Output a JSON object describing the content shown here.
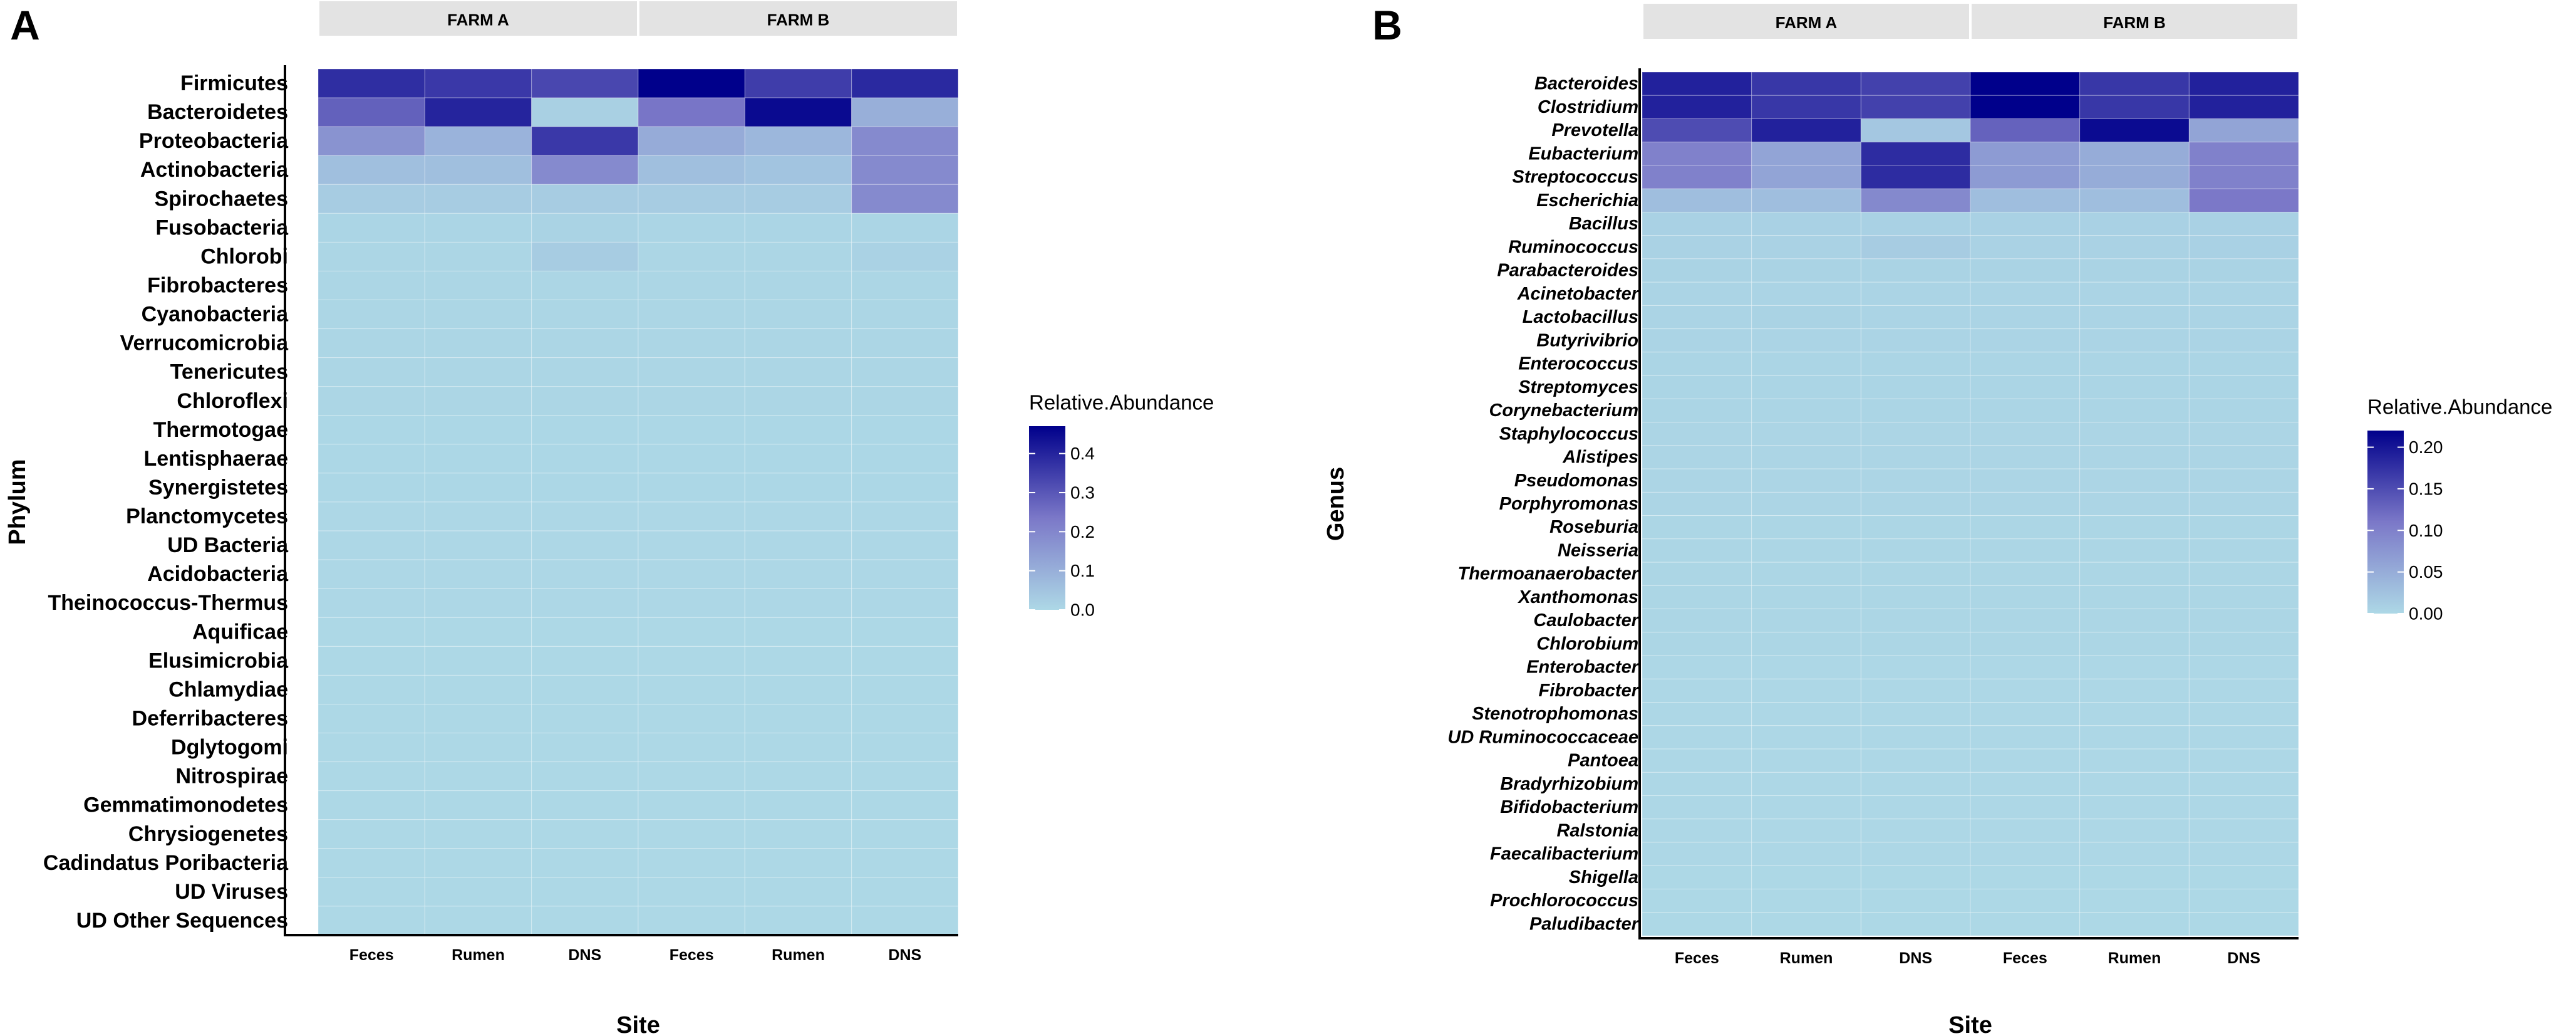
{
  "chart_data": [
    {
      "panel_label": "A",
      "type": "heatmap",
      "facets": [
        "FARM A",
        "FARM B"
      ],
      "x": [
        "Feces",
        "Rumen",
        "DNS",
        "Feces",
        "Rumen",
        "DNS"
      ],
      "xlabel": "Site",
      "ylabel": "Phylum",
      "y": [
        "Firmicutes",
        "Bacteroidetes",
        "Proteobacteria",
        "Actinobacteria",
        "Spirochaetes",
        "Fusobacteria",
        "Chlorobi",
        "Fibrobacteres",
        "Cyanobacteria",
        "Verrucomicrobia",
        "Tenericutes",
        "Chloroflexi",
        "Thermotogae",
        "Lentisphaerae",
        "Synergistetes",
        "Planctomycetes",
        "UD Bacteria",
        "Acidobacteria",
        "Theinococcus-Thermus",
        "Aquificae",
        "Elusimicrobia",
        "Chlamydiae",
        "Deferribacteres",
        "Dglytogomi",
        "Nitrospirae",
        "Gemmatimonodetes",
        "Chrysiogenetes",
        "Cadindatus Poribacteria",
        "UD Viruses",
        "UD Other Sequences"
      ],
      "values": [
        [
          0.38,
          0.36,
          0.33,
          0.47,
          0.35,
          0.39
        ],
        [
          0.28,
          0.4,
          0.02,
          0.24,
          0.45,
          0.1
        ],
        [
          0.17,
          0.09,
          0.36,
          0.11,
          0.08,
          0.19
        ],
        [
          0.06,
          0.06,
          0.19,
          0.06,
          0.05,
          0.19
        ],
        [
          0.03,
          0.03,
          0.03,
          0.03,
          0.03,
          0.19
        ],
        [
          0.008,
          0.008,
          0.012,
          0.008,
          0.008,
          0.008
        ],
        [
          0.006,
          0.006,
          0.03,
          0.006,
          0.006,
          0.014
        ],
        [
          0.005,
          0.005,
          0.006,
          0.005,
          0.005,
          0.005
        ],
        [
          0.005,
          0.005,
          0.005,
          0.005,
          0.005,
          0.005
        ],
        [
          0.004,
          0.004,
          0.004,
          0.004,
          0.004,
          0.004
        ],
        [
          0.004,
          0.004,
          0.004,
          0.004,
          0.004,
          0.004
        ],
        [
          0.004,
          0.004,
          0.004,
          0.004,
          0.004,
          0.004
        ],
        [
          0.003,
          0.003,
          0.003,
          0.003,
          0.003,
          0.003
        ],
        [
          0.003,
          0.003,
          0.003,
          0.003,
          0.003,
          0.003
        ],
        [
          0.003,
          0.003,
          0.003,
          0.003,
          0.003,
          0.003
        ],
        [
          0.002,
          0.002,
          0.002,
          0.002,
          0.002,
          0.002
        ],
        [
          0.002,
          0.002,
          0.002,
          0.002,
          0.002,
          0.002
        ],
        [
          0.002,
          0.002,
          0.002,
          0.002,
          0.002,
          0.002
        ],
        [
          0.002,
          0.002,
          0.002,
          0.002,
          0.002,
          0.002
        ],
        [
          0.001,
          0.001,
          0.001,
          0.001,
          0.001,
          0.001
        ],
        [
          0.001,
          0.001,
          0.001,
          0.001,
          0.001,
          0.001
        ],
        [
          0.001,
          0.001,
          0.001,
          0.001,
          0.001,
          0.001
        ],
        [
          0.001,
          0.001,
          0.001,
          0.001,
          0.001,
          0.001
        ],
        [
          0.001,
          0.001,
          0.001,
          0.001,
          0.001,
          0.001
        ],
        [
          0.001,
          0.001,
          0.001,
          0.001,
          0.001,
          0.001
        ],
        [
          0.0005,
          0.0005,
          0.0005,
          0.0005,
          0.0005,
          0.0005
        ],
        [
          0.0005,
          0.0005,
          0.0005,
          0.0005,
          0.0005,
          0.0005
        ],
        [
          0.0005,
          0.0005,
          0.0005,
          0.0005,
          0.0005,
          0.0005
        ],
        [
          0.0005,
          0.0005,
          0.0005,
          0.0005,
          0.0005,
          0.0005
        ],
        [
          0.0005,
          0.0005,
          0.0005,
          0.0005,
          0.0005,
          0.0005
        ]
      ],
      "legend": {
        "title": "Relative.Abundance",
        "min": 0.0,
        "max": 0.47,
        "ticks": [
          0.0,
          0.1,
          0.2,
          0.3,
          0.4
        ],
        "tick_labels": [
          "0.0",
          "0.1",
          "0.2",
          "0.3",
          "0.4"
        ],
        "low_color": "#add8e6",
        "mid_color": "#7b78c8",
        "high_color": "#00008b",
        "position": "right"
      }
    },
    {
      "panel_label": "B",
      "type": "heatmap",
      "facets": [
        "FARM A",
        "FARM B"
      ],
      "x": [
        "Feces",
        "Rumen",
        "DNS",
        "Feces",
        "Rumen",
        "DNS"
      ],
      "xlabel": "Site",
      "ylabel": "Genus",
      "y": [
        "Bacteroides",
        "Clostridium",
        "Prevotella",
        "Eubacterium",
        "Streptococcus",
        "Escherichia",
        "Bacillus",
        "Ruminococcus",
        "Parabacteroides",
        "Acinetobacter",
        "Lactobacillus",
        "Butyrivibrio",
        "Enterococcus",
        "Streptomyces",
        "Corynebacterium",
        "Staphylococcus",
        "Alistipes",
        "Pseudomonas",
        "Porphyromonas",
        "Roseburia",
        "Neisseria",
        "Thermoanaerobacter",
        "Xanthomonas",
        "Caulobacter",
        "Chlorobium",
        "Enterobacter",
        "Fibrobacter",
        "Stenotrophomonas",
        "UD Ruminococcaceae",
        "Pantoea",
        "Bradyrhizobium",
        "Bifidobacterium",
        "Ralstonia",
        "Faecalibacterium",
        "Shigella",
        "Prochlorococcus",
        "Paludibacter"
      ],
      "values": [
        [
          0.19,
          0.17,
          0.16,
          0.22,
          0.17,
          0.19
        ],
        [
          0.19,
          0.17,
          0.16,
          0.22,
          0.17,
          0.19
        ],
        [
          0.15,
          0.19,
          0.02,
          0.13,
          0.21,
          0.06
        ],
        [
          0.1,
          0.06,
          0.18,
          0.07,
          0.05,
          0.1
        ],
        [
          0.1,
          0.06,
          0.18,
          0.07,
          0.05,
          0.1
        ],
        [
          0.03,
          0.03,
          0.09,
          0.03,
          0.03,
          0.11
        ],
        [
          0.008,
          0.008,
          0.008,
          0.008,
          0.008,
          0.008
        ],
        [
          0.007,
          0.007,
          0.014,
          0.007,
          0.007,
          0.008
        ],
        [
          0.006,
          0.006,
          0.006,
          0.006,
          0.006,
          0.006
        ],
        [
          0.005,
          0.005,
          0.005,
          0.005,
          0.005,
          0.005
        ],
        [
          0.005,
          0.006,
          0.005,
          0.005,
          0.005,
          0.005
        ],
        [
          0.005,
          0.005,
          0.005,
          0.005,
          0.005,
          0.005
        ],
        [
          0.004,
          0.004,
          0.004,
          0.004,
          0.004,
          0.004
        ],
        [
          0.004,
          0.004,
          0.004,
          0.004,
          0.004,
          0.004
        ],
        [
          0.004,
          0.004,
          0.004,
          0.004,
          0.004,
          0.004
        ],
        [
          0.003,
          0.003,
          0.003,
          0.003,
          0.003,
          0.003
        ],
        [
          0.003,
          0.003,
          0.003,
          0.003,
          0.003,
          0.003
        ],
        [
          0.003,
          0.003,
          0.003,
          0.003,
          0.003,
          0.003
        ],
        [
          0.003,
          0.003,
          0.003,
          0.003,
          0.003,
          0.003
        ],
        [
          0.002,
          0.002,
          0.002,
          0.002,
          0.002,
          0.002
        ],
        [
          0.002,
          0.002,
          0.002,
          0.002,
          0.002,
          0.002
        ],
        [
          0.002,
          0.002,
          0.002,
          0.002,
          0.002,
          0.002
        ],
        [
          0.002,
          0.002,
          0.002,
          0.002,
          0.002,
          0.002
        ],
        [
          0.002,
          0.002,
          0.002,
          0.002,
          0.002,
          0.002
        ],
        [
          0.002,
          0.002,
          0.002,
          0.002,
          0.002,
          0.002
        ],
        [
          0.001,
          0.001,
          0.001,
          0.001,
          0.001,
          0.001
        ],
        [
          0.001,
          0.001,
          0.001,
          0.001,
          0.001,
          0.001
        ],
        [
          0.001,
          0.001,
          0.001,
          0.001,
          0.001,
          0.001
        ],
        [
          0.001,
          0.001,
          0.001,
          0.001,
          0.001,
          0.001
        ],
        [
          0.001,
          0.001,
          0.001,
          0.001,
          0.001,
          0.001
        ],
        [
          0.001,
          0.001,
          0.001,
          0.001,
          0.001,
          0.001
        ],
        [
          0.001,
          0.001,
          0.001,
          0.001,
          0.001,
          0.001
        ],
        [
          0.001,
          0.001,
          0.001,
          0.001,
          0.001,
          0.001
        ],
        [
          0.001,
          0.001,
          0.001,
          0.001,
          0.001,
          0.001
        ],
        [
          0.0005,
          0.0005,
          0.0005,
          0.0005,
          0.0005,
          0.0005
        ],
        [
          0.0005,
          0.0005,
          0.0005,
          0.0005,
          0.0005,
          0.0005
        ],
        [
          0.0005,
          0.0005,
          0.0005,
          0.0005,
          0.0005,
          0.0005
        ]
      ],
      "legend": {
        "title": "Relative.Abundance",
        "min": 0.0,
        "max": 0.22,
        "ticks": [
          0.0,
          0.05,
          0.1,
          0.15,
          0.2
        ],
        "tick_labels": [
          "0.00",
          "0.05",
          "0.10",
          "0.15",
          "0.20"
        ],
        "low_color": "#add8e6",
        "mid_color": "#7b78c8",
        "high_color": "#00008b",
        "position": "right"
      }
    }
  ]
}
